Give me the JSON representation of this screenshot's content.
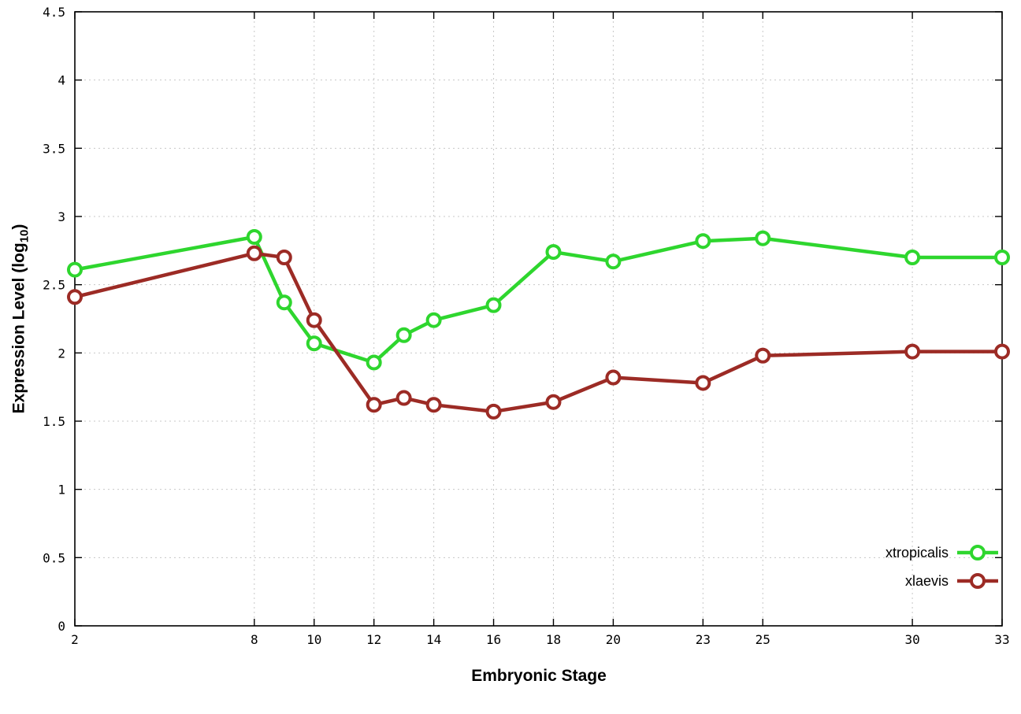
{
  "chart_data": {
    "type": "line",
    "title": "",
    "xlabel": "Embryonic Stage",
    "ylabel": "Expression Level (log10)",
    "ylabel_parts": {
      "prefix": "Expression Level (log",
      "sub": "10",
      "suffix": ")"
    },
    "xlim": [
      2,
      33
    ],
    "ylim": [
      0,
      4.5
    ],
    "x_ticks": [
      2,
      8,
      10,
      12,
      14,
      16,
      18,
      20,
      23,
      25,
      30,
      33
    ],
    "y_ticks": [
      0,
      0.5,
      1,
      1.5,
      2,
      2.5,
      3,
      3.5,
      4,
      4.5
    ],
    "grid": true,
    "legend_position": "bottom-right",
    "x": [
      2,
      8,
      9,
      10,
      12,
      13,
      14,
      16,
      18,
      20,
      23,
      25,
      30,
      33
    ],
    "series": [
      {
        "name": "xtropicalis",
        "color": "#2ed62e",
        "values": [
          2.61,
          2.85,
          2.37,
          2.07,
          1.93,
          2.13,
          2.24,
          2.35,
          2.74,
          2.67,
          2.82,
          2.84,
          2.7,
          2.7
        ]
      },
      {
        "name": "xlaevis",
        "color": "#9c2b25",
        "values": [
          2.41,
          2.73,
          2.7,
          2.24,
          1.62,
          1.67,
          1.62,
          1.57,
          1.64,
          1.82,
          1.78,
          1.98,
          2.01,
          2.01
        ]
      }
    ]
  }
}
